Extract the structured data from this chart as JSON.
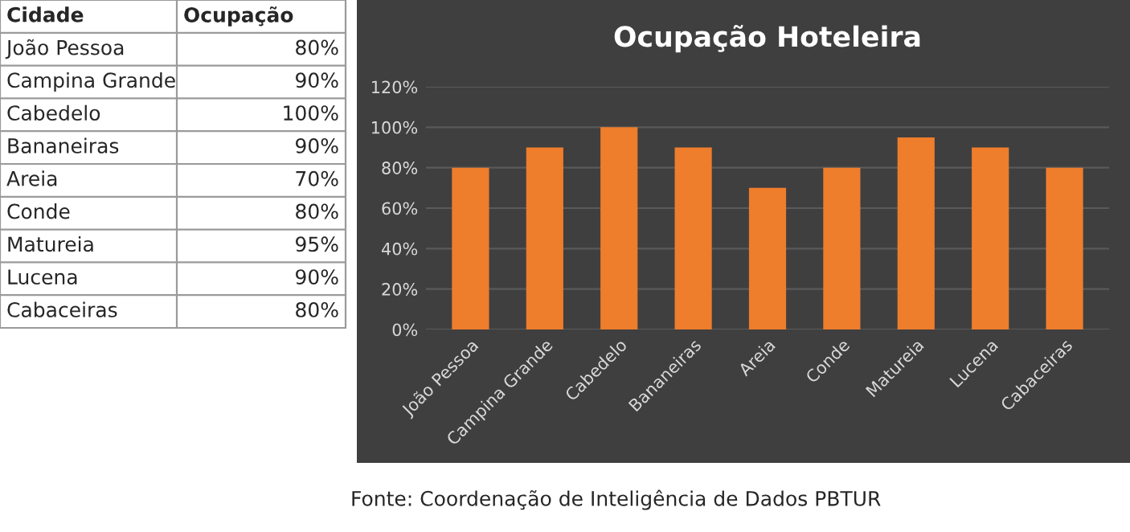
{
  "chart_data": [
    {
      "type": "other",
      "annotations": [
        "Cidade",
        "Ocupação",
        "João Pessoa",
        "80%",
        "Campina Grande",
        "90%",
        "Cabedelo",
        "100%",
        "Bananeiras",
        "90%",
        "Areia",
        "70%",
        "Conde",
        "80%",
        "Matureia",
        "95%",
        "Lucena",
        "90%",
        "Cabaceiras",
        "80%"
      ]
    },
    {
      "type": "bar",
      "title": "Ocupação Hoteleira",
      "categories": [
        "João Pessoa",
        "Campina Grande",
        "Cabedelo",
        "Bananeiras",
        "Areia",
        "Conde",
        "Matureia",
        "Lucena",
        "Cabaceiras"
      ],
      "values": [
        80,
        90,
        100,
        90,
        70,
        80,
        95,
        90,
        80
      ],
      "color": "#ee7d2c",
      "ylim": [
        0,
        120
      ],
      "yticks": [
        {
          "value": 0,
          "label": "0%"
        },
        {
          "value": 20,
          "label": "20%"
        },
        {
          "value": 40,
          "label": "40%"
        },
        {
          "value": 60,
          "label": "60%"
        },
        {
          "value": 80,
          "label": "80%"
        },
        {
          "value": 100,
          "label": "100%"
        },
        {
          "value": 120,
          "label": "120%"
        }
      ],
      "grid": "y",
      "annotations": [
        "Fonte: Coordenação de Inteligência de Dados PBTUR"
      ]
    }
  ]
}
